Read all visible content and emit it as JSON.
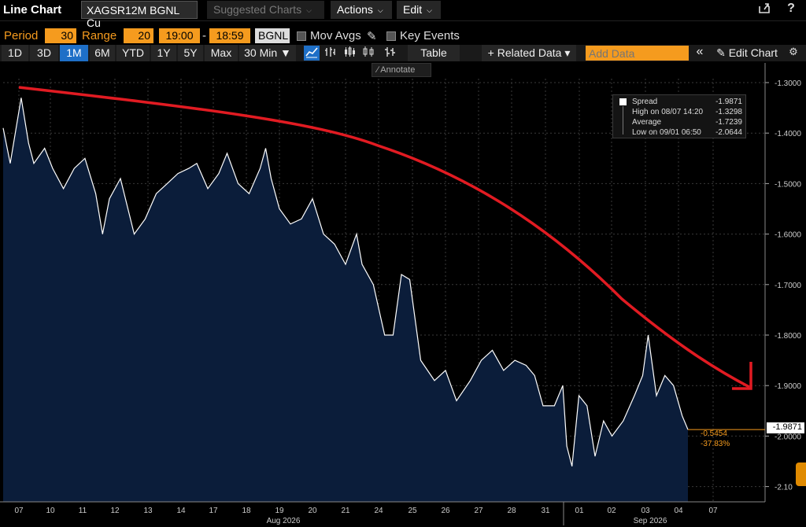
{
  "header": {
    "title": "Line Chart",
    "ticker": "XAGSR12M BGNL Cu",
    "menus": [
      {
        "label": "Suggested Charts",
        "disabled": true
      },
      {
        "label": "Actions",
        "disabled": false
      },
      {
        "label": "Edit",
        "disabled": false
      }
    ],
    "share_icon": "export-icon",
    "help_icon": "?"
  },
  "params": {
    "period_label": "Period",
    "period_value": "30",
    "range_label": "Range",
    "range_value": "20",
    "time_start": "19:00",
    "dash": "-",
    "time_end": "18:59",
    "source": "BGNL",
    "mov_avgs_label": "Mov Avgs",
    "key_events_label": "Key Events"
  },
  "toolbar": {
    "ranges": [
      "1D",
      "3D",
      "1M",
      "6M",
      "YTD",
      "1Y",
      "5Y",
      "Max"
    ],
    "active_range": "1M",
    "interval": "30 Min",
    "interval_arrow": "▼",
    "table_label": "Table",
    "related_label": "+ Related Data",
    "related_arrow": "▾",
    "add_data_placeholder": "Add Data",
    "collapse": "«",
    "edit_chart_label": "Edit Chart",
    "annotate_label": "Annotate"
  },
  "legend": {
    "series": {
      "label": "Spread",
      "value": "-1.9871"
    },
    "high": {
      "label": "High on 08/07 14:20",
      "value": "-1.3298"
    },
    "average": {
      "label": "Average",
      "value": "-1.7239"
    },
    "low": {
      "label": "Low on 09/01 06:50",
      "value": "-2.0644"
    }
  },
  "last_value": "-1.9871",
  "change_abs": "-0.5454",
  "change_pct": "-37.83%",
  "colors": {
    "accent": "#f59b1e",
    "area": "#0b1d3a",
    "line": "#ffffff",
    "trend": "#e11b22",
    "active": "#1e6fc7"
  },
  "chart_data": {
    "type": "area",
    "x_axis": {
      "day_ticks": [
        "07",
        "10",
        "11",
        "12",
        "13",
        "14",
        "17",
        "18",
        "19",
        "20",
        "21",
        "24",
        "25",
        "26",
        "27",
        "28",
        "31",
        "01",
        "02",
        "03",
        "04",
        "07"
      ],
      "month_labels": [
        "Aug 2026",
        "Sep 2026"
      ]
    },
    "y_axis": {
      "ticks": [
        -1.3,
        -1.4,
        -1.5,
        -1.6,
        -1.7,
        -1.8,
        -1.9,
        -2.0,
        -2.1
      ],
      "tick_labels": [
        "-1.3000",
        "-1.4000",
        "-1.5000",
        "-1.6000",
        "-1.7000",
        "-1.8000",
        "-1.9000",
        "-2.0000",
        "-2.10"
      ],
      "ylim": [
        -2.13,
        -1.23
      ]
    },
    "series": [
      {
        "values": [
          {
            "x": "08/07 00:00",
            "y": -1.39
          },
          {
            "x": "08/07 06:00",
            "y": -1.46
          },
          {
            "x": "08/07 14:20",
            "y": -1.33
          },
          {
            "x": "08/07 20:00",
            "y": -1.42
          },
          {
            "x": "08/10 00:00",
            "y": -1.46
          },
          {
            "x": "08/10 08:00",
            "y": -1.43
          },
          {
            "x": "08/10 14:00",
            "y": -1.47
          },
          {
            "x": "08/10 22:00",
            "y": -1.51
          },
          {
            "x": "08/11 06:00",
            "y": -1.47
          },
          {
            "x": "08/11 14:00",
            "y": -1.45
          },
          {
            "x": "08/11 22:00",
            "y": -1.52
          },
          {
            "x": "08/12 03:00",
            "y": -1.6
          },
          {
            "x": "08/12 08:00",
            "y": -1.53
          },
          {
            "x": "08/12 16:00",
            "y": -1.49
          },
          {
            "x": "08/13 02:00",
            "y": -1.6
          },
          {
            "x": "08/13 10:00",
            "y": -1.57
          },
          {
            "x": "08/13 18:00",
            "y": -1.52
          },
          {
            "x": "08/14 02:00",
            "y": -1.5
          },
          {
            "x": "08/14 10:00",
            "y": -1.48
          },
          {
            "x": "08/14 18:00",
            "y": -1.47
          },
          {
            "x": "08/17 00:00",
            "y": -1.46
          },
          {
            "x": "08/17 08:00",
            "y": -1.51
          },
          {
            "x": "08/17 16:00",
            "y": -1.48
          },
          {
            "x": "08/17 22:00",
            "y": -1.44
          },
          {
            "x": "08/18 06:00",
            "y": -1.5
          },
          {
            "x": "08/18 14:00",
            "y": -1.52
          },
          {
            "x": "08/18 22:00",
            "y": -1.47
          },
          {
            "x": "08/19 02:00",
            "y": -1.43
          },
          {
            "x": "08/19 06:00",
            "y": -1.49
          },
          {
            "x": "08/19 12:00",
            "y": -1.55
          },
          {
            "x": "08/19 20:00",
            "y": -1.58
          },
          {
            "x": "08/20 04:00",
            "y": -1.57
          },
          {
            "x": "08/20 12:00",
            "y": -1.53
          },
          {
            "x": "08/20 20:00",
            "y": -1.6
          },
          {
            "x": "08/21 04:00",
            "y": -1.62
          },
          {
            "x": "08/21 12:00",
            "y": -1.66
          },
          {
            "x": "08/21 20:00",
            "y": -1.6
          },
          {
            "x": "08/24 00:00",
            "y": -1.66
          },
          {
            "x": "08/24 08:00",
            "y": -1.7
          },
          {
            "x": "08/24 16:00",
            "y": -1.8
          },
          {
            "x": "08/24 22:00",
            "y": -1.8
          },
          {
            "x": "08/25 04:00",
            "y": -1.68
          },
          {
            "x": "08/25 10:00",
            "y": -1.69
          },
          {
            "x": "08/25 18:00",
            "y": -1.85
          },
          {
            "x": "08/26 04:00",
            "y": -1.89
          },
          {
            "x": "08/26 12:00",
            "y": -1.87
          },
          {
            "x": "08/26 20:00",
            "y": -1.93
          },
          {
            "x": "08/27 06:00",
            "y": -1.89
          },
          {
            "x": "08/27 14:00",
            "y": -1.85
          },
          {
            "x": "08/27 22:00",
            "y": -1.83
          },
          {
            "x": "08/28 06:00",
            "y": -1.87
          },
          {
            "x": "08/28 14:00",
            "y": -1.85
          },
          {
            "x": "08/28 22:00",
            "y": -1.86
          },
          {
            "x": "08/31 04:00",
            "y": -1.88
          },
          {
            "x": "08/31 10:00",
            "y": -1.94
          },
          {
            "x": "08/31 18:00",
            "y": -1.94
          },
          {
            "x": "09/01 00:00",
            "y": -1.9
          },
          {
            "x": "09/01 03:00",
            "y": -2.02
          },
          {
            "x": "09/01 06:50",
            "y": -2.06
          },
          {
            "x": "09/01 12:00",
            "y": -1.92
          },
          {
            "x": "09/01 18:00",
            "y": -1.94
          },
          {
            "x": "09/02 00:00",
            "y": -2.04
          },
          {
            "x": "09/02 06:00",
            "y": -1.97
          },
          {
            "x": "09/02 12:00",
            "y": -2.0
          },
          {
            "x": "09/02 20:00",
            "y": -1.97
          },
          {
            "x": "09/03 04:00",
            "y": -1.92
          },
          {
            "x": "09/03 10:00",
            "y": -1.88
          },
          {
            "x": "09/03 14:00",
            "y": -1.8
          },
          {
            "x": "09/03 20:00",
            "y": -1.92
          },
          {
            "x": "09/04 02:00",
            "y": -1.88
          },
          {
            "x": "09/04 08:00",
            "y": -1.9
          },
          {
            "x": "09/04 14:00",
            "y": -1.96
          },
          {
            "x": "09/04 18:00",
            "y": -1.9871
          }
        ]
      }
    ],
    "legend_position": "top-right",
    "grid": true
  }
}
